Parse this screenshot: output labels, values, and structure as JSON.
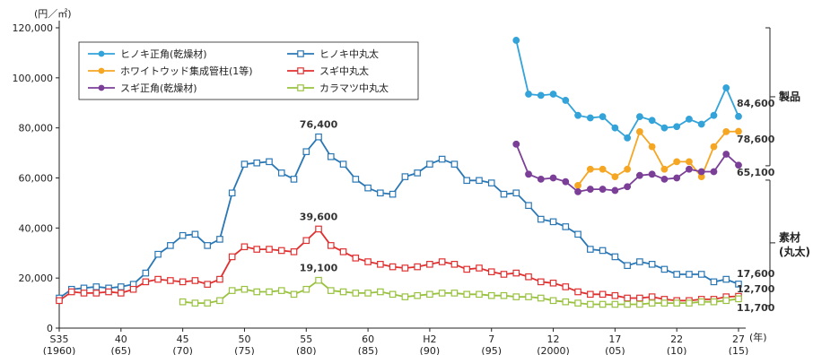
{
  "chart_data": {
    "type": "line",
    "y_unit_label": "(円／㎡)",
    "x_unit_label": "(年)",
    "ylim": [
      0,
      120000
    ],
    "y_ticks": [
      0,
      20000,
      40000,
      60000,
      80000,
      100000,
      120000
    ],
    "y_tick_labels": [
      "0",
      "20,000",
      "40,000",
      "60,000",
      "80,000",
      "100,000",
      "120,000"
    ],
    "xlim": [
      1960,
      2015
    ],
    "x_ticks": [
      {
        "year": 1960,
        "label": "S35",
        "sub": "(1960)"
      },
      {
        "year": 1965,
        "label": "40",
        "sub": "(65)"
      },
      {
        "year": 1970,
        "label": "45",
        "sub": "(70)"
      },
      {
        "year": 1975,
        "label": "50",
        "sub": "(75)"
      },
      {
        "year": 1980,
        "label": "55",
        "sub": "(80)"
      },
      {
        "year": 1985,
        "label": "60",
        "sub": "(85)"
      },
      {
        "year": 1990,
        "label": "H2",
        "sub": "(90)"
      },
      {
        "year": 1995,
        "label": "7",
        "sub": "(95)"
      },
      {
        "year": 2000,
        "label": "12",
        "sub": "(2000)"
      },
      {
        "year": 2005,
        "label": "17",
        "sub": "(05)"
      },
      {
        "year": 2010,
        "label": "22",
        "sub": "(10)"
      },
      {
        "year": 2015,
        "label": "27",
        "sub": "(15)"
      }
    ],
    "series": [
      {
        "name": "ヒノキ正角(乾燥材)",
        "color": "#33a3d9",
        "marker": "filled-circle",
        "x": [
          1997,
          1998,
          1999,
          2000,
          2001,
          2002,
          2003,
          2004,
          2005,
          2006,
          2007,
          2008,
          2009,
          2010,
          2011,
          2012,
          2013,
          2014,
          2015
        ],
        "values": [
          115000,
          93500,
          93000,
          93500,
          91000,
          85000,
          84000,
          84500,
          80000,
          76000,
          84500,
          83000,
          80000,
          80500,
          83500,
          81500,
          85000,
          96000,
          84600
        ]
      },
      {
        "name": "ホワイトウッド集成管柱(1等)",
        "color": "#f5a623",
        "marker": "filled-circle",
        "x": [
          2002,
          2003,
          2004,
          2005,
          2006,
          2007,
          2008,
          2009,
          2010,
          2011,
          2012,
          2013,
          2014,
          2015
        ],
        "values": [
          57000,
          63500,
          63500,
          60500,
          63500,
          78500,
          72500,
          63500,
          66500,
          66500,
          60500,
          72500,
          78500,
          78600
        ]
      },
      {
        "name": "スギ正角(乾燥材)",
        "color": "#7b3f98",
        "marker": "filled-circle",
        "x": [
          1997,
          1998,
          1999,
          2000,
          2001,
          2002,
          2003,
          2004,
          2005,
          2006,
          2007,
          2008,
          2009,
          2010,
          2011,
          2012,
          2013,
          2014,
          2015
        ],
        "values": [
          73500,
          61500,
          59500,
          60000,
          58500,
          54500,
          55500,
          55500,
          55000,
          56500,
          61000,
          61500,
          59500,
          60000,
          63500,
          62500,
          62500,
          69500,
          65100
        ]
      },
      {
        "name": "ヒノキ中丸太",
        "color": "#2a77b5",
        "marker": "open-square",
        "x": [
          1960,
          1961,
          1962,
          1963,
          1964,
          1965,
          1966,
          1967,
          1968,
          1969,
          1970,
          1971,
          1972,
          1973,
          1974,
          1975,
          1976,
          1977,
          1978,
          1979,
          1980,
          1981,
          1982,
          1983,
          1984,
          1985,
          1986,
          1987,
          1988,
          1989,
          1990,
          1991,
          1992,
          1993,
          1994,
          1995,
          1996,
          1997,
          1998,
          1999,
          2000,
          2001,
          2002,
          2003,
          2004,
          2005,
          2006,
          2007,
          2008,
          2009,
          2010,
          2011,
          2012,
          2013,
          2014,
          2015
        ],
        "values": [
          12000,
          15500,
          16000,
          16500,
          16000,
          16500,
          17500,
          22000,
          29500,
          33000,
          37000,
          37500,
          33000,
          35500,
          54000,
          65500,
          66000,
          66500,
          62000,
          59500,
          70500,
          76400,
          68500,
          65500,
          59500,
          56000,
          54000,
          53500,
          60500,
          62000,
          65500,
          67500,
          65500,
          59000,
          59000,
          58000,
          53500,
          54000,
          49000,
          43500,
          42500,
          40500,
          37500,
          31500,
          31000,
          28500,
          25000,
          26500,
          25500,
          23500,
          21500,
          21500,
          21500,
          18500,
          19500,
          17600
        ]
      },
      {
        "name": "スギ中丸太",
        "color": "#e03030",
        "marker": "open-square",
        "x": [
          1960,
          1961,
          1962,
          1963,
          1964,
          1965,
          1966,
          1967,
          1968,
          1969,
          1970,
          1971,
          1972,
          1973,
          1974,
          1975,
          1976,
          1977,
          1978,
          1979,
          1980,
          1981,
          1982,
          1983,
          1984,
          1985,
          1986,
          1987,
          1988,
          1989,
          1990,
          1991,
          1992,
          1993,
          1994,
          1995,
          1996,
          1997,
          1998,
          1999,
          2000,
          2001,
          2002,
          2003,
          2004,
          2005,
          2006,
          2007,
          2008,
          2009,
          2010,
          2011,
          2012,
          2013,
          2014,
          2015
        ],
        "values": [
          11000,
          14500,
          14000,
          14000,
          14500,
          14000,
          15500,
          18500,
          19500,
          19000,
          18500,
          19000,
          17500,
          19500,
          28500,
          32500,
          31500,
          31500,
          31000,
          30500,
          35000,
          39600,
          33000,
          30500,
          28000,
          26500,
          25500,
          24500,
          24000,
          24500,
          25500,
          26500,
          25500,
          23500,
          24000,
          22500,
          21500,
          22000,
          20500,
          18500,
          18000,
          16500,
          14500,
          13500,
          13500,
          13000,
          12000,
          12000,
          12500,
          11500,
          11000,
          11000,
          11500,
          11500,
          12500,
          12700
        ]
      },
      {
        "name": "カラマツ中丸太",
        "color": "#99c23e",
        "marker": "open-square",
        "x": [
          1970,
          1971,
          1972,
          1973,
          1974,
          1975,
          1976,
          1977,
          1978,
          1979,
          1980,
          1981,
          1982,
          1983,
          1984,
          1985,
          1986,
          1987,
          1988,
          1989,
          1990,
          1991,
          1992,
          1993,
          1994,
          1995,
          1996,
          1997,
          1998,
          1999,
          2000,
          2001,
          2002,
          2003,
          2004,
          2005,
          2006,
          2007,
          2008,
          2009,
          2010,
          2011,
          2012,
          2013,
          2014,
          2015
        ],
        "values": [
          10500,
          10000,
          10000,
          11000,
          15000,
          15500,
          14500,
          14500,
          15000,
          13500,
          15500,
          19100,
          15000,
          14500,
          14000,
          14000,
          14500,
          13500,
          12500,
          13000,
          13500,
          14000,
          14000,
          13500,
          13500,
          13000,
          13000,
          12500,
          12500,
          12000,
          11000,
          10500,
          10000,
          9500,
          9500,
          9500,
          9500,
          9500,
          10000,
          10000,
          10000,
          10000,
          10500,
          10500,
          11000,
          11700
        ]
      }
    ],
    "annotations": [
      {
        "text": "76,400",
        "x": 1981,
        "y": 76400
      },
      {
        "text": "39,600",
        "x": 1981,
        "y": 39600
      },
      {
        "text": "19,100",
        "x": 1981,
        "y": 19100
      },
      {
        "text": "84,600",
        "x": 2015,
        "y": 84600
      },
      {
        "text": "78,600",
        "x": 2015,
        "y": 78600
      },
      {
        "text": "65,100",
        "x": 2015,
        "y": 65100
      },
      {
        "text": "17,600",
        "x": 2015,
        "y": 17600
      },
      {
        "text": "12,700",
        "x": 2015,
        "y": 12700
      },
      {
        "text": "11,700",
        "x": 2015,
        "y": 11700
      }
    ],
    "groups": [
      {
        "label": "製品",
        "ymin": 62000,
        "ymax": 120000
      },
      {
        "label": "素材",
        "label2": "(丸太)",
        "ymin": 9000,
        "ymax": 62000
      }
    ],
    "legend_position": "top-left",
    "grid": false
  }
}
